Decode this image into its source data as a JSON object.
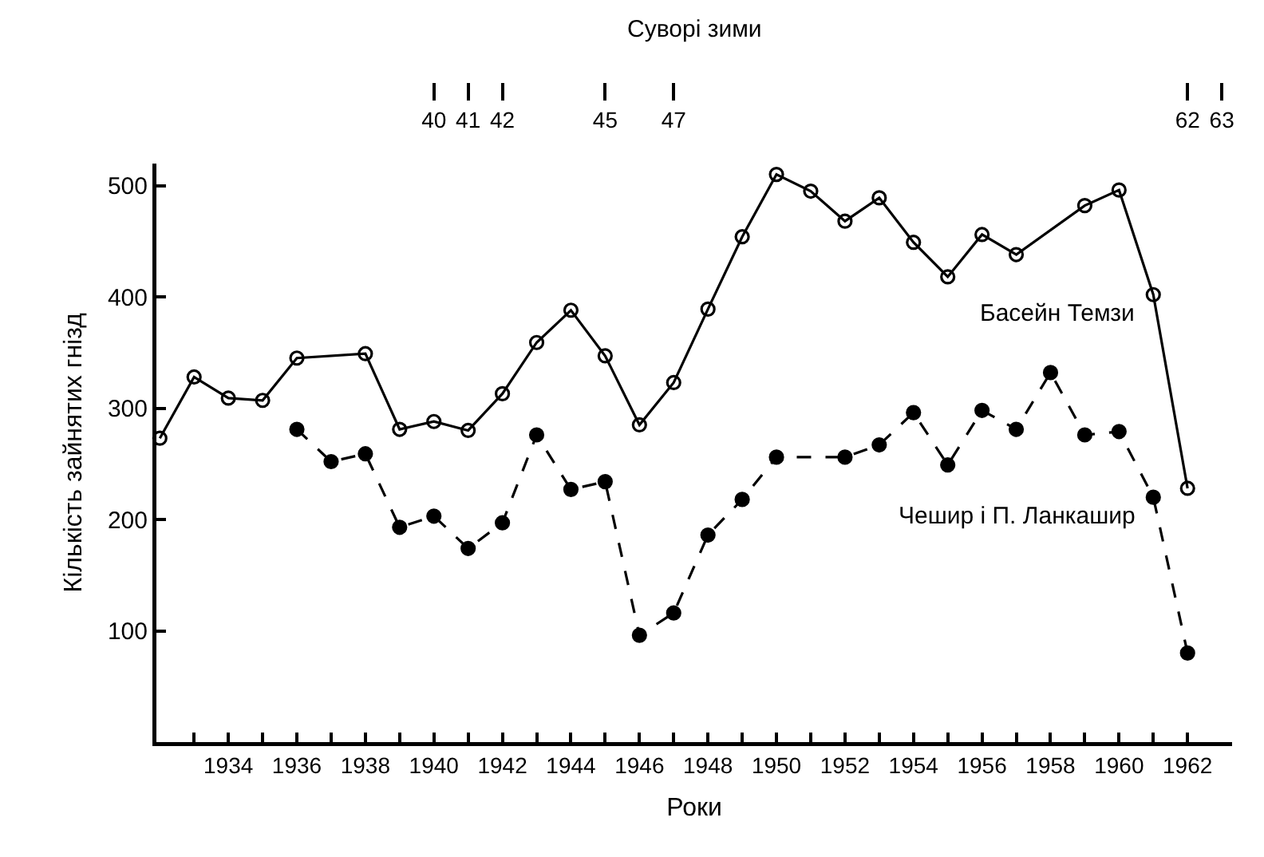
{
  "chart_data": {
    "type": "line",
    "xlabel": "Роки",
    "ylabel": "Кількість зайнятих гнізд",
    "x2label": "Суворі зими",
    "xlim": [
      1931.9,
      1963.3
    ],
    "ylim": [
      0,
      520
    ],
    "xticks": [
      {
        "value": 1933,
        "label": null
      },
      1934,
      {
        "value": 1935,
        "label": null
      },
      1936,
      {
        "value": 1937,
        "label": null
      },
      1938,
      {
        "value": 1939,
        "label": null
      },
      1940,
      {
        "value": 1941,
        "label": null
      },
      1942,
      {
        "value": 1943,
        "label": null
      },
      1944,
      {
        "value": 1945,
        "label": null
      },
      1946,
      {
        "value": 1947,
        "label": null
      },
      1948,
      {
        "value": 1949,
        "label": null
      },
      1950,
      {
        "value": 1951,
        "label": null
      },
      1952,
      {
        "value": 1953,
        "label": null
      },
      1954,
      {
        "value": 1955,
        "label": null
      },
      1956,
      {
        "value": 1957,
        "label": null
      },
      1958,
      {
        "value": 1959,
        "label": null
      },
      1960,
      {
        "value": 1961,
        "label": null
      },
      1962
    ],
    "yticks": [
      100,
      200,
      300,
      400,
      500
    ],
    "x2lim": [
      1931.9,
      1963.3
    ],
    "x2ticks": [
      {
        "value": 1940,
        "label": "40"
      },
      {
        "value": 1941,
        "label": "41"
      },
      {
        "value": 1942,
        "label": "42"
      },
      {
        "value": 1945,
        "label": "45"
      },
      {
        "value": 1947,
        "label": "47"
      },
      {
        "value": 1962,
        "label": "62"
      },
      {
        "value": 1963,
        "label": "63"
      }
    ],
    "grid": false,
    "legend": false,
    "series": [
      {
        "name": "Басейн Темзи",
        "color": "#000000",
        "marker": "circle-open",
        "line_style": "solid",
        "x": [
          1932,
          1933,
          1934,
          1935,
          1936,
          1938,
          1939,
          1940,
          1941,
          1942,
          1943,
          1944,
          1945,
          1946,
          1947,
          1948,
          1949,
          1950,
          1951,
          1952,
          1953,
          1954,
          1955,
          1956,
          1957,
          1959,
          1960,
          1961,
          1962
        ],
        "values": [
          273,
          328,
          309,
          307,
          345,
          349,
          281,
          288,
          280,
          313,
          359,
          388,
          347,
          285,
          323,
          389,
          454,
          510,
          495,
          468,
          489,
          449,
          418,
          456,
          438,
          482,
          496,
          402,
          228
        ]
      },
      {
        "name": "Чешир і П. Ланкашир",
        "color": "#000000",
        "marker": "circle",
        "line_style": "dashed",
        "x": [
          1936,
          1937,
          1938,
          1939,
          1940,
          1941,
          1942,
          1943,
          1944,
          1945,
          1946,
          1947,
          1948,
          1949,
          1950,
          1952,
          1953,
          1954,
          1955,
          1956,
          1957,
          1958,
          1959,
          1960,
          1961,
          1962
        ],
        "values": [
          281,
          252,
          259,
          193,
          203,
          174,
          197,
          276,
          227,
          234,
          96,
          116,
          186,
          218,
          256,
          256,
          267,
          296,
          249,
          298,
          281,
          332,
          276,
          279,
          220,
          80
        ]
      }
    ]
  }
}
